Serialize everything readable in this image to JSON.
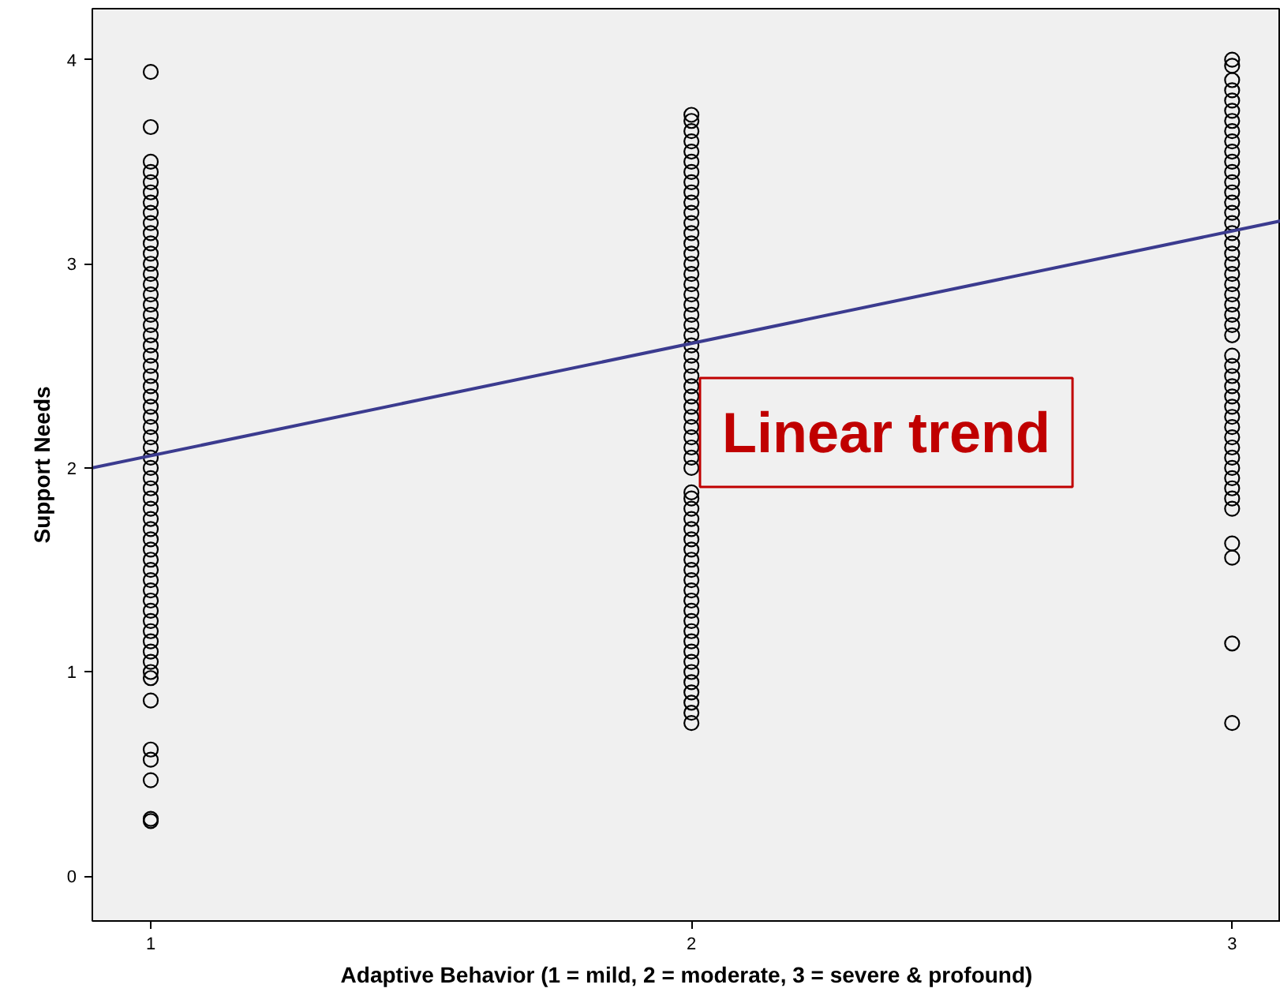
{
  "chart_data": {
    "type": "scatter",
    "xlabel": "Adaptive Behavior (1 = mild, 2 = moderate, 3 = severe & profound)",
    "ylabel": "Support Needs",
    "xlim": [
      0.892,
      3.09
    ],
    "ylim": [
      -0.22,
      4.25
    ],
    "xticks": [
      1,
      2,
      3
    ],
    "yticks": [
      0,
      1,
      2,
      3,
      4
    ],
    "grid": false,
    "marker": "circle",
    "annotations": [
      "Linear trend"
    ],
    "series": [
      {
        "color": "#000000",
        "x": [
          1,
          1,
          1,
          1,
          1,
          1,
          1,
          1,
          1,
          1,
          1,
          1,
          1,
          1,
          1,
          1,
          1,
          1,
          1,
          1,
          1,
          1,
          1,
          1,
          1,
          1,
          1,
          1,
          1,
          1,
          1,
          1,
          1,
          1,
          1,
          1,
          1,
          1,
          1,
          1,
          1,
          1,
          1,
          1,
          1,
          1,
          1,
          1,
          1,
          1,
          1,
          1,
          1,
          1,
          1,
          1,
          1,
          1,
          1,
          1
        ],
        "values": [
          3.94,
          3.67,
          3.5,
          3.45,
          3.4,
          3.35,
          3.3,
          3.25,
          3.2,
          3.15,
          3.1,
          3.05,
          3.0,
          2.95,
          2.9,
          2.85,
          2.8,
          2.75,
          2.7,
          2.65,
          2.6,
          2.55,
          2.5,
          2.45,
          2.4,
          2.35,
          2.3,
          2.25,
          2.2,
          2.15,
          2.1,
          2.05,
          2.0,
          1.95,
          1.9,
          1.85,
          1.8,
          1.75,
          1.7,
          1.65,
          1.6,
          1.55,
          1.5,
          1.45,
          1.4,
          1.35,
          1.3,
          1.25,
          1.2,
          1.15,
          1.1,
          1.05,
          1.0,
          0.97,
          0.86,
          0.62,
          0.57,
          0.47,
          0.28,
          0.27
        ]
      },
      {
        "color": "#000000",
        "x": [
          2,
          2,
          2,
          2,
          2,
          2,
          2,
          2,
          2,
          2,
          2,
          2,
          2,
          2,
          2,
          2,
          2,
          2,
          2,
          2,
          2,
          2,
          2,
          2,
          2,
          2,
          2,
          2,
          2,
          2,
          2,
          2,
          2,
          2,
          2,
          2,
          2,
          2,
          2,
          2,
          2,
          2,
          2,
          2,
          2,
          2,
          2,
          2,
          2,
          2,
          2,
          2,
          2,
          2,
          2,
          2,
          2,
          2,
          2,
          2
        ],
        "values": [
          3.73,
          3.7,
          3.65,
          3.6,
          3.55,
          3.5,
          3.45,
          3.4,
          3.35,
          3.3,
          3.25,
          3.2,
          3.15,
          3.1,
          3.05,
          3.0,
          2.95,
          2.9,
          2.85,
          2.8,
          2.75,
          2.7,
          2.65,
          2.6,
          2.55,
          2.5,
          2.45,
          2.4,
          2.35,
          2.3,
          2.25,
          2.2,
          2.15,
          2.1,
          2.05,
          2.0,
          1.88,
          1.85,
          1.8,
          1.75,
          1.7,
          1.65,
          1.6,
          1.55,
          1.5,
          1.45,
          1.4,
          1.35,
          1.3,
          1.25,
          1.2,
          1.15,
          1.1,
          1.05,
          1.0,
          0.95,
          0.9,
          0.85,
          0.8,
          0.75
        ]
      },
      {
        "color": "#000000",
        "x": [
          3,
          3,
          3,
          3,
          3,
          3,
          3,
          3,
          3,
          3,
          3,
          3,
          3,
          3,
          3,
          3,
          3,
          3,
          3,
          3,
          3,
          3,
          3,
          3,
          3,
          3,
          3,
          3,
          3,
          3,
          3,
          3,
          3,
          3,
          3,
          3,
          3,
          3,
          3,
          3,
          3,
          3,
          3,
          3,
          3,
          3,
          3,
          3
        ],
        "values": [
          4.0,
          3.97,
          3.9,
          3.85,
          3.8,
          3.75,
          3.7,
          3.65,
          3.6,
          3.55,
          3.5,
          3.45,
          3.4,
          3.35,
          3.3,
          3.25,
          3.2,
          3.15,
          3.1,
          3.05,
          3.0,
          2.95,
          2.9,
          2.85,
          2.8,
          2.75,
          2.7,
          2.65,
          2.55,
          2.5,
          2.45,
          2.4,
          2.35,
          2.3,
          2.25,
          2.2,
          2.15,
          2.1,
          2.05,
          2.0,
          1.95,
          1.9,
          1.85,
          1.8,
          1.63,
          1.56,
          1.14,
          0.75
        ]
      },
      {
        "type": "line",
        "marker": "none",
        "color": "#3b3b8f",
        "x": [
          0.892,
          3.09
        ],
        "values": [
          2.0,
          3.21
        ]
      }
    ]
  }
}
